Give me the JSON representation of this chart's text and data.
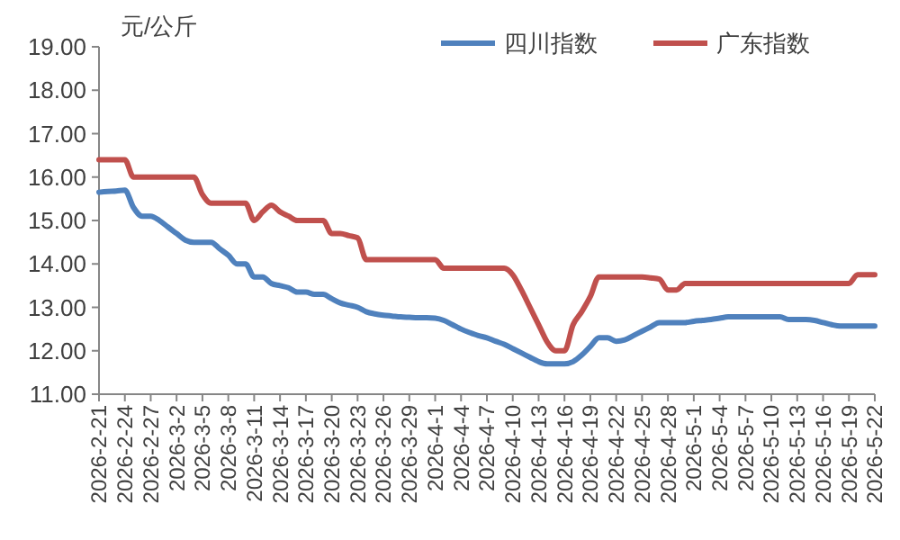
{
  "chart_data": {
    "type": "line",
    "ylabel": "元/公斤",
    "legend": "top right",
    "grid": false,
    "marker": "none",
    "line_style": "solid",
    "categories": [
      "2026-2-21",
      null,
      null,
      "2026-2-24",
      null,
      null,
      "2026-2-27",
      null,
      null,
      "2026-3-2",
      null,
      null,
      "2026-3-5",
      null,
      null,
      "2026-3-8",
      null,
      null,
      "2026-3-11",
      null,
      null,
      "2026-3-14",
      null,
      null,
      "2026-3-17",
      null,
      null,
      "2026-3-20",
      null,
      null,
      "2026-3-23",
      null,
      null,
      "2026-3-26",
      null,
      null,
      "2026-3-29",
      null,
      null,
      "2026-4-1",
      null,
      null,
      "2026-4-4",
      null,
      null,
      "2026-4-7",
      null,
      null,
      "2026-4-10",
      null,
      null,
      "2026-4-13",
      null,
      null,
      "2026-4-16",
      null,
      null,
      "2026-4-19",
      null,
      null,
      "2026-4-22",
      null,
      null,
      "2026-4-25",
      null,
      null,
      "2026-4-28",
      null,
      null,
      "2026-5-1",
      null,
      null,
      "2026-5-4",
      null,
      null,
      "2026-5-7",
      null,
      null,
      "2026-5-10",
      null,
      null,
      "2026-5-13",
      null,
      null,
      "2026-5-16",
      null,
      null,
      "2026-5-19",
      null,
      null,
      "2026-5-22"
    ],
    "ylim": [
      11,
      19
    ],
    "yticks": [
      {
        "value": 11,
        "label": "11.00"
      },
      {
        "value": 12,
        "label": "12.00"
      },
      {
        "value": 13,
        "label": "13.00"
      },
      {
        "value": 14,
        "label": "14.00"
      },
      {
        "value": 15,
        "label": "15.00"
      },
      {
        "value": 16,
        "label": "16.00"
      },
      {
        "value": 17,
        "label": "17.00"
      },
      {
        "value": 18,
        "label": "18.00"
      },
      {
        "value": 19,
        "label": "19.00"
      }
    ],
    "series": [
      {
        "name": "四川指数",
        "color": "#4f81bd",
        "values": [
          15.65,
          15.67,
          15.68,
          15.7,
          15.3,
          15.1,
          15.1,
          15.0,
          14.85,
          14.7,
          14.55,
          14.5,
          14.5,
          14.5,
          14.35,
          14.2,
          14.0,
          14.0,
          13.7,
          13.7,
          13.55,
          13.5,
          13.45,
          13.35,
          13.35,
          13.3,
          13.3,
          13.2,
          13.1,
          13.05,
          13.0,
          12.9,
          12.85,
          12.82,
          12.8,
          12.78,
          12.77,
          12.76,
          12.76,
          12.75,
          12.7,
          12.6,
          12.5,
          12.42,
          12.35,
          12.3,
          12.22,
          12.15,
          12.05,
          11.95,
          11.85,
          11.75,
          11.7,
          11.7,
          11.7,
          11.75,
          11.9,
          12.1,
          12.3,
          12.3,
          12.22,
          12.25,
          12.35,
          12.45,
          12.55,
          12.65,
          12.65,
          12.65,
          12.65,
          12.68,
          12.7,
          12.72,
          12.75,
          12.78,
          12.78,
          12.78,
          12.78,
          12.78,
          12.78,
          12.78,
          12.72,
          12.72,
          12.72,
          12.7,
          12.65,
          12.6,
          12.57,
          12.57,
          12.57,
          12.57,
          12.57
        ]
      },
      {
        "name": "广东指数",
        "color": "#c0504d",
        "values": [
          16.4,
          16.4,
          16.4,
          16.4,
          16.0,
          16.0,
          16.0,
          16.0,
          16.0,
          16.0,
          16.0,
          16.0,
          15.6,
          15.4,
          15.4,
          15.4,
          15.4,
          15.4,
          15.0,
          15.2,
          15.35,
          15.2,
          15.1,
          15.0,
          15.0,
          15.0,
          15.0,
          14.7,
          14.7,
          14.65,
          14.6,
          14.1,
          14.1,
          14.1,
          14.1,
          14.1,
          14.1,
          14.1,
          14.1,
          14.1,
          13.9,
          13.9,
          13.9,
          13.9,
          13.9,
          13.9,
          13.9,
          13.9,
          13.75,
          13.4,
          13.0,
          12.6,
          12.2,
          12.0,
          12.0,
          12.6,
          12.9,
          13.25,
          13.7,
          13.7,
          13.7,
          13.7,
          13.7,
          13.7,
          13.68,
          13.65,
          13.4,
          13.4,
          13.55,
          13.55,
          13.55,
          13.55,
          13.55,
          13.55,
          13.55,
          13.55,
          13.55,
          13.55,
          13.55,
          13.55,
          13.55,
          13.55,
          13.55,
          13.55,
          13.55,
          13.55,
          13.55,
          13.55,
          13.75,
          13.75,
          13.75
        ]
      }
    ]
  }
}
